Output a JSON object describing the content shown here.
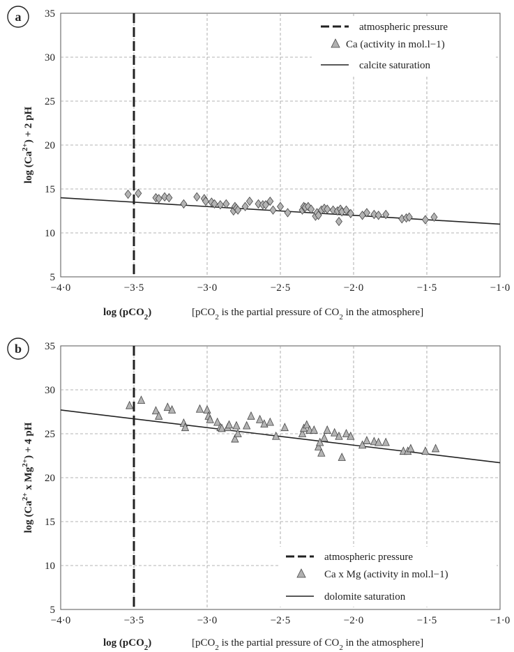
{
  "chart_data": [
    {
      "type": "scatter",
      "panel_label": "a",
      "ylabel": {
        "pre": "log (Ca",
        "sup": "2+",
        "post": ") + 2 pH"
      },
      "xlabel": {
        "pre": "log (pCO",
        "sub": "2",
        "post": ")"
      },
      "note": {
        "p1": "[pCO",
        "s1": "2",
        "p2": " is the partial pressure of CO",
        "s2": "2",
        "p3": " in the atmosphere]"
      },
      "xlim": [
        -4.0,
        -1.0
      ],
      "ylim": [
        5,
        35
      ],
      "x_ticks": [
        -4.0,
        -3.5,
        -3.0,
        -2.5,
        -2.0,
        -1.5,
        -1.0
      ],
      "x_tick_labels": [
        "−4·0",
        "−3·5",
        "−3·0",
        "−2·5",
        "−2·0",
        "−1·5",
        "−1·0"
      ],
      "y_ticks": [
        5,
        10,
        15,
        20,
        25,
        30,
        35
      ],
      "y_tick_labels": [
        "5",
        "10",
        "15",
        "20",
        "25",
        "30",
        "35"
      ],
      "grid": true,
      "legend_position": "top-right",
      "legend": [
        "atmospheric pressure",
        "Ca (activity in mol.l−1)",
        "calcite saturation"
      ],
      "marker": "diamond",
      "vline_x": -3.5,
      "saturation_line": {
        "x": [
          -4.0,
          -1.0
        ],
        "y": [
          14.0,
          11.0
        ]
      },
      "x": [
        -3.54,
        -3.47,
        -3.35,
        -3.33,
        -3.29,
        -3.26,
        -3.16,
        -3.07,
        -3.02,
        -3.01,
        -2.97,
        -2.95,
        -2.91,
        -2.87,
        -2.82,
        -2.81,
        -2.8,
        -2.79,
        -2.74,
        -2.71,
        -2.65,
        -2.62,
        -2.6,
        -2.57,
        -2.55,
        -2.5,
        -2.45,
        -2.35,
        -2.34,
        -2.33,
        -2.31,
        -2.29,
        -2.26,
        -2.25,
        -2.24,
        -2.22,
        -2.2,
        -2.18,
        -2.14,
        -2.11,
        -2.1,
        -2.09,
        -2.08,
        -2.05,
        -2.02,
        -1.94,
        -1.91,
        -1.86,
        -1.83,
        -1.78,
        -1.67,
        -1.64,
        -1.62,
        -1.51,
        -1.45
      ],
      "y": [
        14.4,
        14.5,
        14.0,
        13.9,
        14.1,
        14.0,
        13.3,
        14.1,
        13.9,
        13.6,
        13.5,
        13.3,
        13.2,
        13.3,
        12.5,
        13.0,
        12.8,
        12.6,
        13.0,
        13.6,
        13.3,
        13.2,
        13.2,
        13.6,
        12.6,
        13.0,
        12.3,
        12.6,
        13.0,
        12.9,
        13.0,
        12.7,
        11.9,
        12.3,
        12.0,
        12.6,
        12.8,
        12.7,
        12.6,
        12.5,
        11.3,
        12.7,
        12.4,
        12.6,
        12.2,
        12.0,
        12.3,
        12.1,
        12.0,
        12.1,
        11.6,
        11.7,
        11.8,
        11.5,
        11.8
      ]
    },
    {
      "type": "scatter",
      "panel_label": "b",
      "ylabel": {
        "pre": "log (Ca",
        "sup": "2+",
        "mid": " x Mg",
        "sup2": "2+",
        "post": ") + 4 pH"
      },
      "xlabel": {
        "pre": "log (pCO",
        "sub": "2",
        "post": ")"
      },
      "note": {
        "p1": "[pCO",
        "s1": "2",
        "p2": " is the partial pressure of CO",
        "s2": "2",
        "p3": " in the atmosphere]"
      },
      "xlim": [
        -4.0,
        -1.0
      ],
      "ylim": [
        5,
        35
      ],
      "x_ticks": [
        -4.0,
        -3.5,
        -3.0,
        -2.5,
        -2.0,
        -1.5,
        -1.0
      ],
      "x_tick_labels": [
        "−4·0",
        "−3·5",
        "−3·0",
        "−2·5",
        "−2·0",
        "−1·5",
        "−1·0"
      ],
      "y_ticks": [
        5,
        10,
        15,
        20,
        25,
        30,
        35
      ],
      "y_tick_labels": [
        "5",
        "10",
        "15",
        "20",
        "25",
        "30",
        "35"
      ],
      "grid": true,
      "legend_position": "bottom-right",
      "legend": [
        "atmospheric pressure",
        "Ca x Mg (activity in mol.l−1)",
        "dolomite saturation"
      ],
      "marker": "triangle",
      "vline_x": -3.5,
      "saturation_line": {
        "x": [
          -4.0,
          -1.0
        ],
        "y": [
          27.7,
          21.7
        ]
      },
      "x": [
        -3.53,
        -3.45,
        -3.35,
        -3.33,
        -3.27,
        -3.24,
        -3.16,
        -3.15,
        -3.05,
        -3.0,
        -2.99,
        -2.98,
        -2.93,
        -2.91,
        -2.9,
        -2.86,
        -2.85,
        -2.81,
        -2.8,
        -2.79,
        -2.73,
        -2.7,
        -2.64,
        -2.61,
        -2.57,
        -2.53,
        -2.47,
        -2.35,
        -2.34,
        -2.32,
        -2.3,
        -2.27,
        -2.24,
        -2.23,
        -2.22,
        -2.2,
        -2.18,
        -2.13,
        -2.1,
        -2.08,
        -2.05,
        -2.02,
        -1.94,
        -1.91,
        -1.86,
        -1.83,
        -1.78,
        -1.66,
        -1.63,
        -1.61,
        -1.51,
        -1.44
      ],
      "y": [
        28.2,
        28.8,
        27.6,
        27.0,
        28.0,
        27.7,
        26.2,
        25.7,
        27.8,
        27.7,
        27.0,
        26.6,
        26.3,
        25.7,
        25.6,
        25.7,
        26.0,
        24.4,
        25.9,
        25.0,
        25.9,
        27.0,
        26.6,
        26.1,
        26.3,
        24.7,
        25.7,
        25.0,
        25.6,
        26.0,
        25.4,
        25.4,
        23.5,
        24.0,
        22.8,
        24.5,
        25.4,
        25.1,
        24.7,
        22.3,
        25.0,
        24.7,
        23.7,
        24.2,
        24.1,
        24.0,
        24.0,
        23.0,
        23.0,
        23.3,
        23.0,
        23.3
      ]
    }
  ]
}
